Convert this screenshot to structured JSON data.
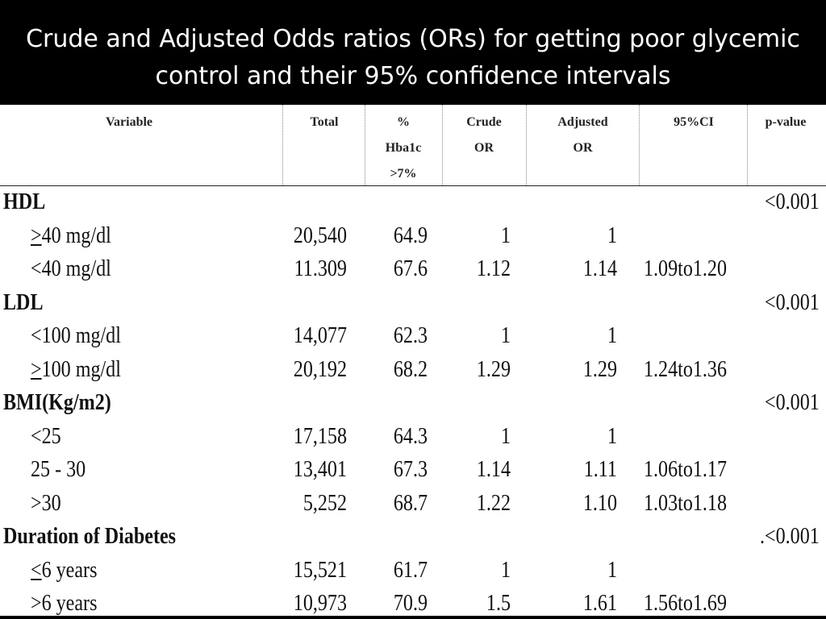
{
  "title": "Crude and Adjusted Odds ratios (ORs) for getting poor glycemic control and their 95% confidence intervals",
  "columns": {
    "variable": "Variable",
    "total": "Total",
    "pct": [
      "%",
      "Hba1c",
      ">7%"
    ],
    "crude": [
      "Crude",
      "OR"
    ],
    "adjusted": [
      "Adjusted",
      "OR"
    ],
    "ci": "95%CI",
    "pvalue": "p-value"
  },
  "rows": [
    {
      "type": "section",
      "label": "HDL",
      "p": "<0.001"
    },
    {
      "type": "item",
      "sym": ">",
      "label": "40 mg/dl",
      "total": "20,540",
      "pct": "64.9",
      "crude": "1",
      "adjusted": "1",
      "ci": ""
    },
    {
      "type": "item",
      "sym": "",
      "label": "<40 mg/dl",
      "total": "11.309",
      "pct": "67.6",
      "crude": "1.12",
      "adjusted": "1.14",
      "ci": "1.09to1.20"
    },
    {
      "type": "section",
      "label": "LDL",
      "p": "<0.001"
    },
    {
      "type": "item",
      "sym": "",
      "label": "<100 mg/dl",
      "total": "14,077",
      "pct": "62.3",
      "crude": "1",
      "adjusted": "1",
      "ci": ""
    },
    {
      "type": "item",
      "sym": ">",
      "label": "100 mg/dl",
      "total": "20,192",
      "pct": "68.2",
      "crude": "1.29",
      "adjusted": "1.29",
      "ci": "1.24to1.36"
    },
    {
      "type": "section",
      "label": "BMI(Kg/m2)",
      "p": "<0.001"
    },
    {
      "type": "item",
      "sym": "",
      "label": "<25",
      "total": "17,158",
      "pct": "64.3",
      "crude": "1",
      "adjusted": "1",
      "ci": ""
    },
    {
      "type": "item",
      "sym": "",
      "label": "25 - 30",
      "total": "13,401",
      "pct": "67.3",
      "crude": "1.14",
      "adjusted": "1.11",
      "ci": "1.06to1.17"
    },
    {
      "type": "item",
      "sym": "",
      "label": ">30",
      "total": "5,252",
      "pct": "68.7",
      "crude": "1.22",
      "adjusted": "1.10",
      "ci": "1.03to1.18"
    },
    {
      "type": "section",
      "label": "Duration of Diabetes",
      "p": ".<0.001"
    },
    {
      "type": "item",
      "sym": "<",
      "label": "6 years",
      "total": "15,521",
      "pct": "61.7",
      "crude": "1",
      "adjusted": "1",
      "ci": ""
    },
    {
      "type": "item",
      "sym": "",
      "label": ">6 years",
      "total": "10,973",
      "pct": "70.9",
      "crude": "1.5",
      "adjusted": "1.61",
      "ci": "1.56to1.69"
    }
  ]
}
